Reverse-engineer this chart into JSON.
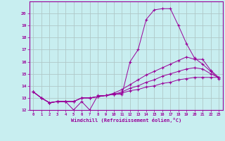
{
  "title": "",
  "xlabel": "Windchill (Refroidissement éolien,°C)",
  "ylabel": "",
  "bg_color": "#c8eef0",
  "line_color": "#990099",
  "grid_color": "#b0c8c8",
  "xlim": [
    -0.5,
    23.5
  ],
  "ylim": [
    12,
    21
  ],
  "yticks": [
    12,
    13,
    14,
    15,
    16,
    17,
    18,
    19,
    20
  ],
  "xticks": [
    0,
    1,
    2,
    3,
    4,
    5,
    6,
    7,
    8,
    9,
    10,
    11,
    12,
    13,
    14,
    15,
    16,
    17,
    18,
    19,
    20,
    21,
    22,
    23
  ],
  "series": [
    {
      "x": [
        0,
        1,
        2,
        3,
        4,
        5,
        6,
        7,
        8,
        9,
        10,
        11,
        12,
        13,
        14,
        15,
        16,
        17,
        18,
        19,
        20,
        21,
        22,
        23
      ],
      "y": [
        13.5,
        13.0,
        12.6,
        12.7,
        12.7,
        12.0,
        12.7,
        12.0,
        13.2,
        13.2,
        13.3,
        13.3,
        16.0,
        17.0,
        19.5,
        20.3,
        20.4,
        20.4,
        19.0,
        17.5,
        16.3,
        15.8,
        15.2,
        14.6
      ]
    },
    {
      "x": [
        0,
        1,
        2,
        3,
        4,
        5,
        6,
        7,
        8,
        9,
        10,
        11,
        12,
        13,
        14,
        15,
        16,
        17,
        18,
        19,
        20,
        21,
        22,
        23
      ],
      "y": [
        13.5,
        13.0,
        12.6,
        12.7,
        12.7,
        12.7,
        13.0,
        13.0,
        13.1,
        13.2,
        13.4,
        13.7,
        14.1,
        14.5,
        14.9,
        15.2,
        15.5,
        15.8,
        16.1,
        16.4,
        16.2,
        16.2,
        15.3,
        14.7
      ]
    },
    {
      "x": [
        0,
        1,
        2,
        3,
        4,
        5,
        6,
        7,
        8,
        9,
        10,
        11,
        12,
        13,
        14,
        15,
        16,
        17,
        18,
        19,
        20,
        21,
        22,
        23
      ],
      "y": [
        13.5,
        13.0,
        12.6,
        12.7,
        12.7,
        12.7,
        13.0,
        13.0,
        13.1,
        13.2,
        13.3,
        13.5,
        13.8,
        14.0,
        14.3,
        14.5,
        14.8,
        15.0,
        15.2,
        15.4,
        15.5,
        15.4,
        15.0,
        14.7
      ]
    },
    {
      "x": [
        0,
        1,
        2,
        3,
        4,
        5,
        6,
        7,
        8,
        9,
        10,
        11,
        12,
        13,
        14,
        15,
        16,
        17,
        18,
        19,
        20,
        21,
        22,
        23
      ],
      "y": [
        13.5,
        13.0,
        12.6,
        12.7,
        12.7,
        12.7,
        13.0,
        13.0,
        13.1,
        13.2,
        13.3,
        13.4,
        13.6,
        13.7,
        13.9,
        14.0,
        14.2,
        14.3,
        14.5,
        14.6,
        14.7,
        14.7,
        14.7,
        14.7
      ]
    }
  ]
}
